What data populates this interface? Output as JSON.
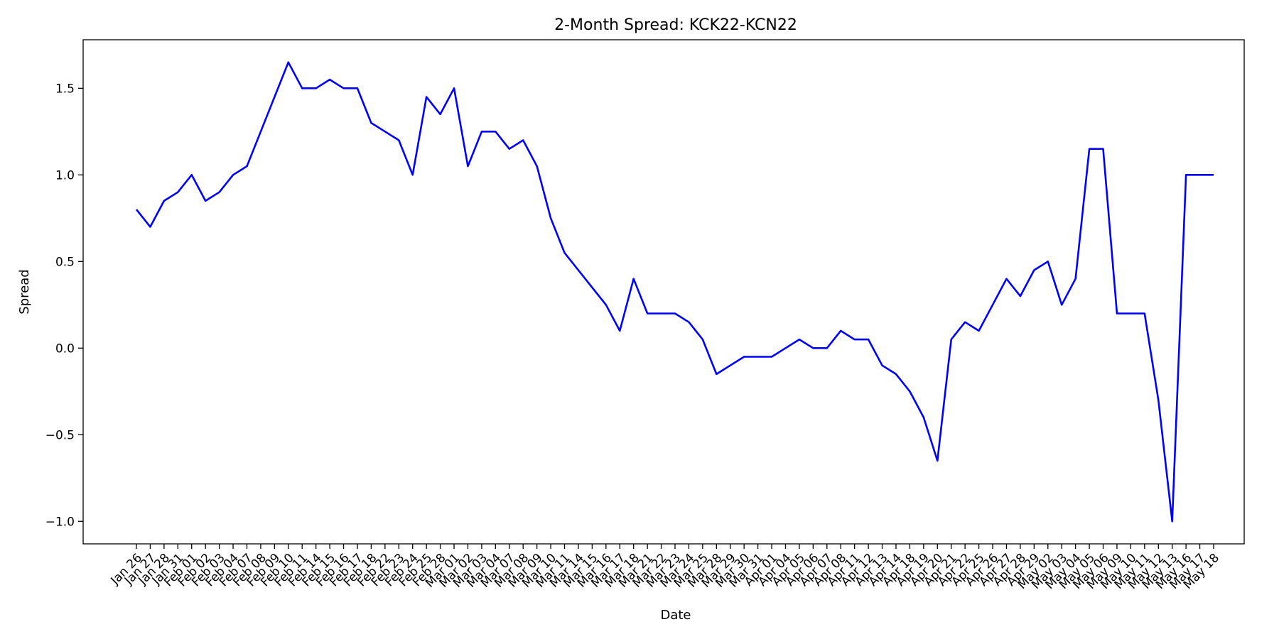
{
  "chart_data": {
    "type": "line",
    "title": "2-Month Spread: KCK22-KCN22",
    "xlabel": "Date",
    "ylabel": "Spread",
    "ylim": [
      -1.13,
      1.78
    ],
    "yticks": [
      -1.0,
      -0.5,
      0.0,
      0.5,
      1.0,
      1.5
    ],
    "ytick_labels": [
      "−1.0",
      "−0.5",
      "0.0",
      "0.5",
      "1.0",
      "1.5"
    ],
    "grid": false,
    "line_color": "#0000ff",
    "x": [
      "Jan 26",
      "Jan 27",
      "Jan 28",
      "Jan 31",
      "Feb 01",
      "Feb 02",
      "Feb 03",
      "Feb 04",
      "Feb 07",
      "Feb 08",
      "Feb 09",
      "Feb 10",
      "Feb 11",
      "Feb 14",
      "Feb 15",
      "Feb 16",
      "Feb 17",
      "Feb 18",
      "Feb 22",
      "Feb 23",
      "Feb 24",
      "Feb 25",
      "Feb 28",
      "Mar 01",
      "Mar 02",
      "Mar 03",
      "Mar 04",
      "Mar 07",
      "Mar 08",
      "Mar 09",
      "Mar 10",
      "Mar 11",
      "Mar 14",
      "Mar 15",
      "Mar 16",
      "Mar 17",
      "Mar 18",
      "Mar 21",
      "Mar 22",
      "Mar 23",
      "Mar 24",
      "Mar 25",
      "Mar 28",
      "Mar 29",
      "Mar 30",
      "Mar 31",
      "Apr 01",
      "Apr 04",
      "Apr 05",
      "Apr 06",
      "Apr 07",
      "Apr 08",
      "Apr 11",
      "Apr 12",
      "Apr 13",
      "Apr 14",
      "Apr 18",
      "Apr 19",
      "Apr 20",
      "Apr 21",
      "Apr 22",
      "Apr 25",
      "Apr 26",
      "Apr 27",
      "Apr 28",
      "Apr 29",
      "May 02",
      "May 03",
      "May 04",
      "May 05",
      "May 06",
      "May 09",
      "May 10",
      "May 11",
      "May 12",
      "May 13",
      "May 16",
      "May 17",
      "May 18"
    ],
    "series": [
      {
        "values": [
          0.8,
          0.7,
          0.85,
          0.9,
          1.0,
          0.85,
          0.9,
          1.0,
          1.05,
          1.25,
          1.45,
          1.65,
          1.5,
          1.5,
          1.55,
          1.5,
          1.5,
          1.3,
          1.25,
          1.2,
          1.0,
          1.45,
          1.35,
          1.5,
          1.05,
          1.25,
          1.25,
          1.15,
          1.2,
          1.05,
          0.75,
          0.55,
          0.45,
          0.35,
          0.25,
          0.1,
          0.4,
          0.2,
          0.2,
          0.2,
          0.15,
          0.05,
          -0.15,
          -0.1,
          -0.05,
          -0.05,
          -0.05,
          0.0,
          0.05,
          0.0,
          0.0,
          0.1,
          0.05,
          0.05,
          -0.1,
          -0.15,
          -0.25,
          -0.4,
          -0.65,
          0.05,
          0.15,
          0.1,
          0.25,
          0.4,
          0.3,
          0.45,
          0.5,
          0.25,
          0.4,
          1.15,
          1.15,
          0.2,
          0.2,
          0.2,
          -0.3,
          -1.0,
          1.0,
          1.0,
          1.0
        ]
      }
    ]
  }
}
